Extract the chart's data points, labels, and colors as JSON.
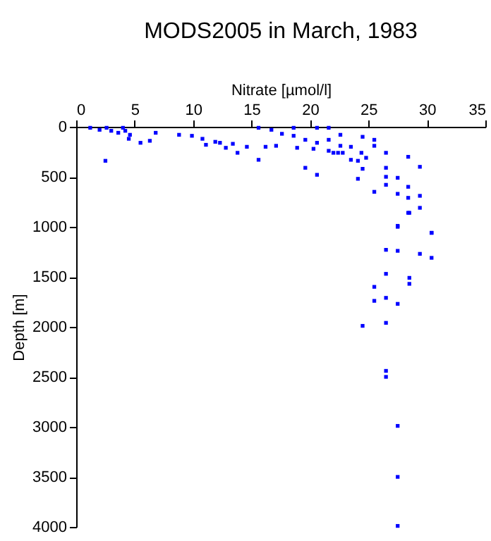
{
  "chart_data": {
    "type": "scatter",
    "title": "MODS2005 in March, 1983",
    "xlabel": "Nitrate [µmol/l]",
    "ylabel": "Depth [m]",
    "xlim": [
      0,
      35
    ],
    "xticks": [
      0,
      5,
      10,
      15,
      20,
      25,
      30,
      35
    ],
    "ylim": [
      4000,
      0
    ],
    "yticks": [
      0,
      500,
      1000,
      1500,
      2000,
      2500,
      3000,
      3500,
      4000
    ],
    "grid": false,
    "marker": "square",
    "series": [
      {
        "color": "#0000ff",
        "x": [
          1.2,
          2.0,
          2.6,
          3.0,
          3.6,
          4.0,
          4.2,
          4.5,
          4.6,
          2.5,
          5.5,
          6.3,
          6.8,
          8.8,
          9.9,
          10.8,
          11.1,
          11.9,
          12.3,
          12.8,
          13.4,
          13.8,
          14.6,
          15.6,
          15.6,
          16.2,
          16.7,
          17.1,
          17.6,
          18.6,
          18.6,
          18.9,
          19.6,
          19.6,
          20.3,
          20.6,
          20.6,
          20.6,
          21.6,
          21.6,
          21.6,
          22.0,
          22.4,
          22.6,
          22.6,
          22.8,
          23.5,
          23.5,
          24.1,
          24.1,
          24.5,
          24.4,
          24.5,
          24.8,
          25.5,
          25.5,
          25.5,
          26.5,
          26.5,
          26.5,
          26.5,
          27.5,
          27.5,
          27.5,
          28.4,
          28.4,
          28.4,
          28.4,
          29.4,
          29.4,
          29.4,
          30.4,
          28.5,
          27.5,
          30.4,
          26.5,
          27.5,
          29.4,
          30.4,
          26.5,
          28.5,
          28.5,
          25.5,
          26.5,
          25.5,
          27.5,
          24.5,
          26.5,
          26.5,
          26.5,
          27.5,
          27.5,
          27.5
        ],
        "values": [
          10,
          30,
          10,
          40,
          60,
          10,
          40,
          120,
          80,
          340,
          160,
          140,
          60,
          80,
          90,
          120,
          180,
          150,
          160,
          210,
          170,
          260,
          200,
          10,
          330,
          200,
          30,
          190,
          70,
          10,
          90,
          210,
          130,
          410,
          220,
          10,
          160,
          480,
          10,
          130,
          240,
          260,
          260,
          80,
          190,
          260,
          200,
          330,
          340,
          520,
          100,
          260,
          420,
          310,
          130,
          190,
          650,
          260,
          410,
          500,
          580,
          510,
          670,
          990,
          300,
          600,
          710,
          860,
          400,
          690,
          810,
          1060,
          860,
          1000,
          1060,
          1230,
          1240,
          1270,
          1310,
          1470,
          1510,
          1570,
          1600,
          1710,
          1740,
          1770,
          1990,
          1960,
          2440,
          2500,
          2990,
          3500,
          3990
        ]
      }
    ]
  }
}
